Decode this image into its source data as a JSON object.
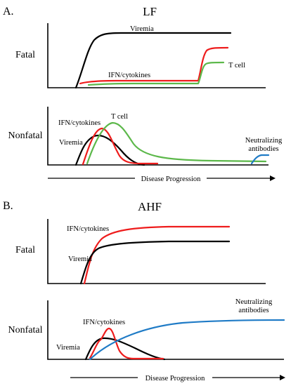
{
  "panel_a": {
    "letter": "A.",
    "title": "LF",
    "fatal": {
      "row_label": "Fatal",
      "viremia": "Viremia",
      "ifn": "IFN/cytokines",
      "tcell": "T cell"
    },
    "nonfatal": {
      "row_label": "Nonfatal",
      "ifn": "IFN/cytokines",
      "tcell": "T cell",
      "viremia": "Viremia",
      "nab_line1": "Neutralizing",
      "nab_line2": "antibodies"
    },
    "progress": "Disease Progression"
  },
  "panel_b": {
    "letter": "B.",
    "title": "AHF",
    "fatal": {
      "row_label": "Fatal",
      "ifn": "IFN/cytokines",
      "viremia": "Viremia"
    },
    "nonfatal": {
      "row_label": "Nonfatal",
      "ifn": "IFN/cytokines",
      "viremia": "Viremia",
      "nab_line1": "Neutralizing",
      "nab_line2": "antibodies"
    },
    "progress": "Disease Progression"
  },
  "colors": {
    "viremia": "#000000",
    "ifn_cytokines": "#ee1c1c",
    "t_cell": "#5cb84a",
    "neutralizing_antibodies": "#1f7bc6"
  }
}
